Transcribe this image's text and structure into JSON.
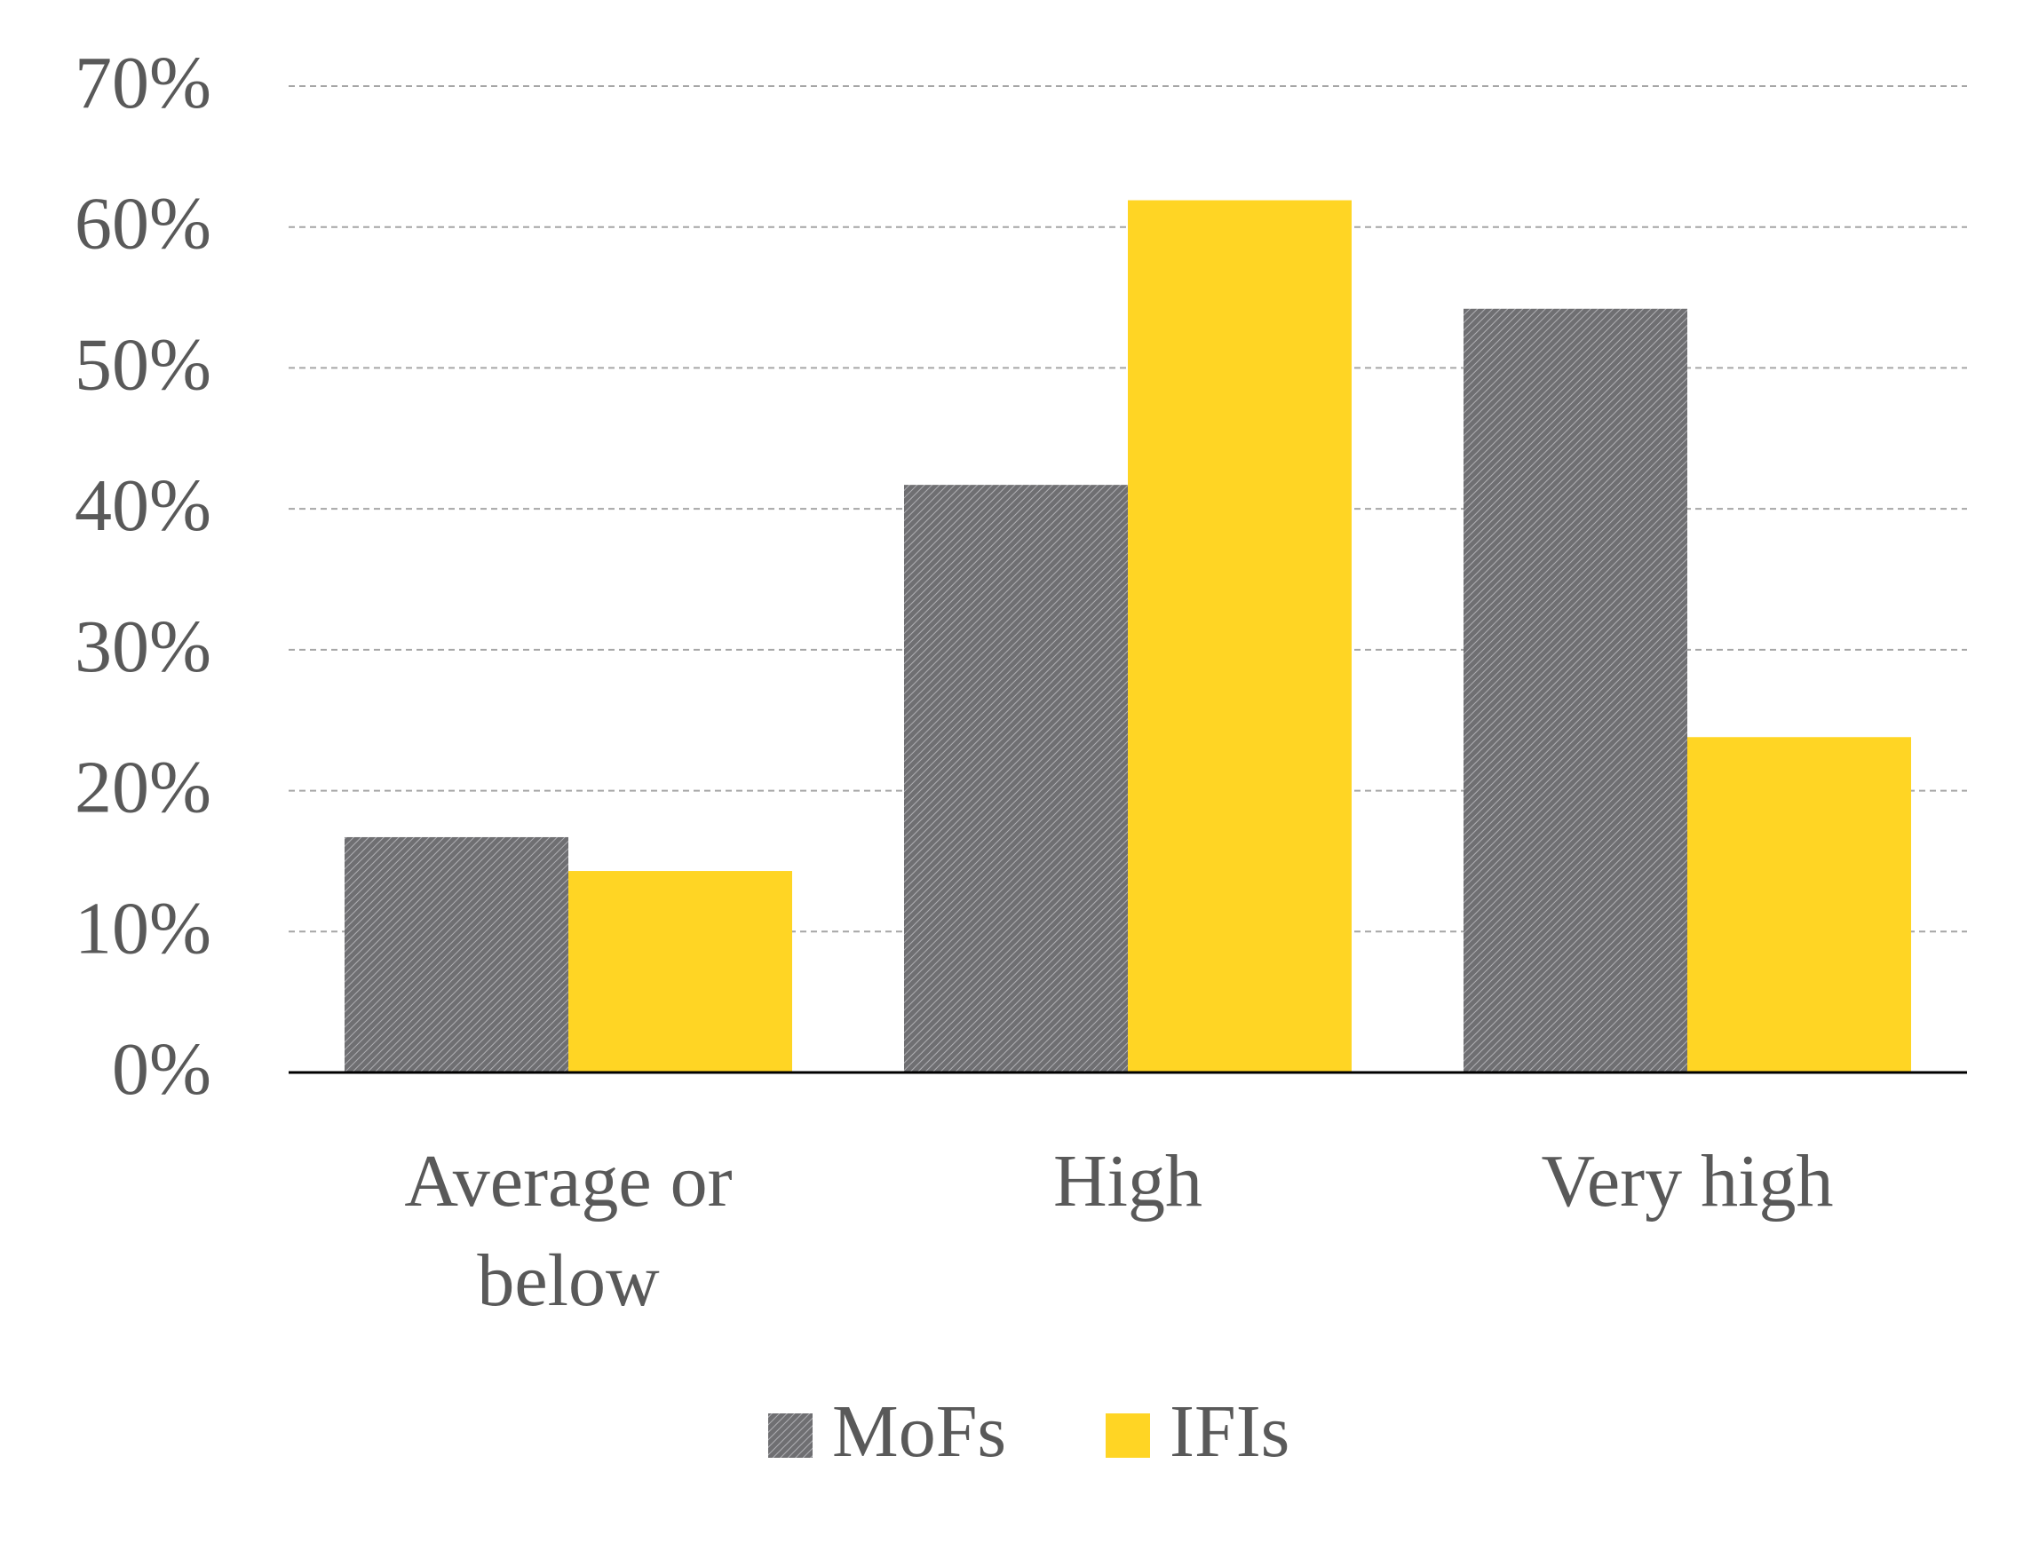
{
  "chart_data": {
    "type": "bar",
    "title": "",
    "xlabel": "",
    "ylabel": "",
    "categories": [
      [
        "Average or",
        "below"
      ],
      [
        "High"
      ],
      [
        "Very high"
      ]
    ],
    "series": [
      {
        "name": "MoFs",
        "values": [
          0.167,
          0.417,
          0.542
        ],
        "color": "#7f7f7f",
        "pattern": "diagonal-hatch"
      },
      {
        "name": "IFIs",
        "values": [
          0.143,
          0.619,
          0.238
        ],
        "color": "#ffd524",
        "pattern": "solid"
      }
    ],
    "ylim": [
      0,
      0.7
    ],
    "yticks": [
      0,
      0.1,
      0.2,
      0.3,
      0.4,
      0.5,
      0.6,
      0.7
    ],
    "ytick_labels": [
      "0%",
      "10%",
      "20%",
      "30%",
      "40%",
      "50%",
      "60%",
      "70%"
    ],
    "grid": true,
    "grid_style": "dashed",
    "legend_position": "bottom"
  }
}
